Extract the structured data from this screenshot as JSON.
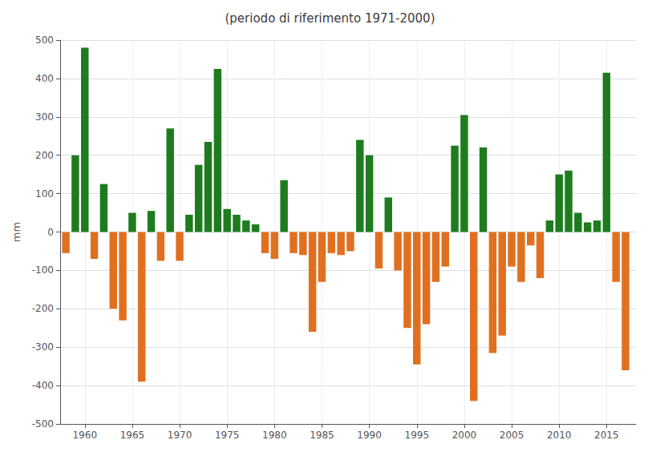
{
  "chart_data": {
    "type": "bar",
    "title": "(periodo di riferimento 1971-2000)",
    "ylabel": "mm",
    "x": [
      1958,
      1959,
      1960,
      1961,
      1962,
      1963,
      1964,
      1965,
      1966,
      1967,
      1968,
      1969,
      1970,
      1971,
      1972,
      1973,
      1974,
      1975,
      1976,
      1977,
      1978,
      1979,
      1980,
      1981,
      1982,
      1983,
      1984,
      1985,
      1986,
      1987,
      1988,
      1989,
      1990,
      1991,
      1992,
      1993,
      1994,
      1995,
      1996,
      1997,
      1998,
      1999,
      2000,
      2001,
      2002,
      2003,
      2004,
      2005,
      2006,
      2007,
      2008,
      2009,
      2010,
      2011,
      2012,
      2013,
      2014,
      2015,
      2016,
      2017
    ],
    "values": [
      -55,
      200,
      480,
      -70,
      125,
      -200,
      -230,
      50,
      -390,
      55,
      -75,
      270,
      -75,
      45,
      175,
      235,
      425,
      60,
      45,
      30,
      20,
      -55,
      -70,
      135,
      -55,
      -60,
      -260,
      -130,
      -55,
      -60,
      -50,
      240,
      200,
      -95,
      90,
      -100,
      -250,
      -345,
      -240,
      -130,
      -90,
      225,
      305,
      -440,
      220,
      -315,
      -270,
      -90,
      -130,
      -35,
      -120,
      30,
      150,
      160,
      50,
      25,
      30,
      415,
      -130,
      -360
    ],
    "colors": [
      "#e07020",
      "#1e7c1e",
      "#1e7c1e",
      "#e07020",
      "#1e7c1e",
      "#e07020",
      "#e07020",
      "#1e7c1e",
      "#e07020",
      "#1e7c1e",
      "#e07020",
      "#1e7c1e",
      "#e07020",
      "#1e7c1e",
      "#1e7c1e",
      "#1e7c1e",
      "#1e7c1e",
      "#1e7c1e",
      "#1e7c1e",
      "#1e7c1e",
      "#1e7c1e",
      "#e07020",
      "#e07020",
      "#1e7c1e",
      "#e07020",
      "#e07020",
      "#e07020",
      "#e07020",
      "#e07020",
      "#e07020",
      "#e07020",
      "#1e7c1e",
      "#1e7c1e",
      "#e07020",
      "#1e7c1e",
      "#e07020",
      "#e07020",
      "#e07020",
      "#e07020",
      "#e07020",
      "#e07020",
      "#1e7c1e",
      "#1e7c1e",
      "#e07020",
      "#1e7c1e",
      "#e07020",
      "#e07020",
      "#e07020",
      "#e07020",
      "#e07020",
      "#e07020",
      "#1e7c1e",
      "#1e7c1e",
      "#1e7c1e",
      "#1e7c1e",
      "#1e7c1e",
      "#1e7c1e",
      "#1e7c1e",
      "#e07020",
      "#e07020"
    ],
    "xlim": [
      1957.4,
      2018.1
    ],
    "xticks": [
      1960,
      1965,
      1970,
      1975,
      1980,
      1985,
      1990,
      1995,
      2000,
      2005,
      2010,
      2015
    ],
    "ylim": [
      -500,
      500
    ],
    "yticks": [
      -500,
      -400,
      -300,
      -200,
      -100,
      0,
      100,
      200,
      300,
      400,
      500
    ],
    "grid": true
  }
}
